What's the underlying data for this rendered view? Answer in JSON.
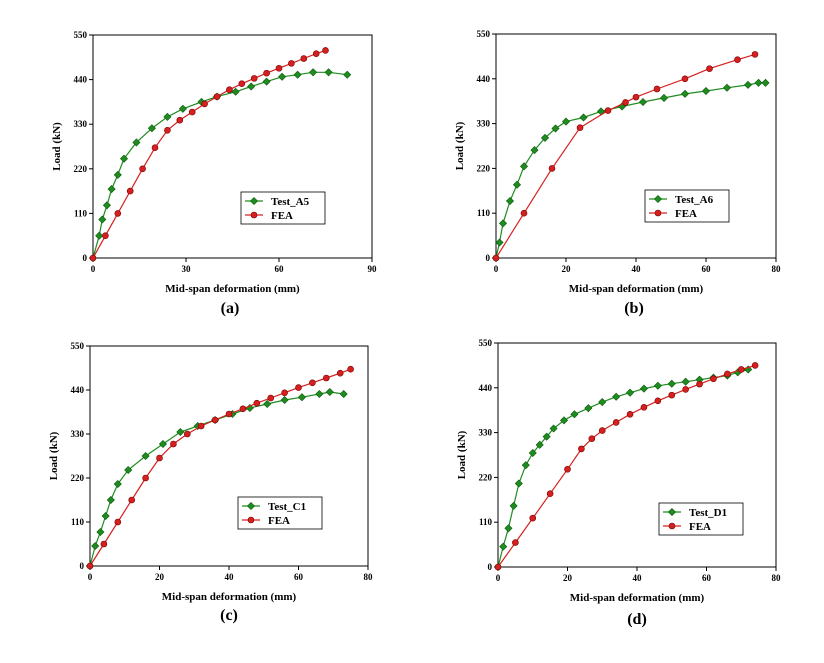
{
  "chart_data": [
    {
      "type": "line",
      "panel_label": "(a)",
      "xlabel": "Mid-span deformation (mm)",
      "ylabel": "Load (kN)",
      "xlim": [
        0,
        90
      ],
      "ylim": [
        0,
        550
      ],
      "xticks": [
        0,
        30,
        60,
        90
      ],
      "yticks": [
        0,
        110,
        220,
        330,
        440,
        550
      ],
      "legend_position": "lower-right",
      "grid": false,
      "series": [
        {
          "name": "Test_A5",
          "color": "#1f8c1f",
          "marker": "diamond",
          "x": [
            0,
            2,
            3,
            4.5,
            6,
            8,
            10,
            14,
            19,
            24,
            29,
            35,
            40,
            46,
            51,
            56,
            61,
            66,
            71,
            76,
            82
          ],
          "y": [
            0,
            55,
            95,
            130,
            170,
            205,
            245,
            285,
            320,
            348,
            368,
            385,
            398,
            410,
            423,
            435,
            447,
            452,
            458,
            458,
            452
          ]
        },
        {
          "name": "FEA",
          "color": "#d62020",
          "marker": "circle",
          "x": [
            0,
            4,
            8,
            12,
            16,
            20,
            24,
            28,
            32,
            36,
            40,
            44,
            48,
            52,
            56,
            60,
            64,
            68,
            72,
            75
          ],
          "y": [
            0,
            55,
            110,
            165,
            220,
            272,
            315,
            340,
            360,
            380,
            398,
            415,
            430,
            443,
            456,
            468,
            480,
            492,
            504,
            512
          ]
        }
      ]
    },
    {
      "type": "line",
      "panel_label": "(b)",
      "xlabel": "Mid-span deformation (mm)",
      "ylabel": "Load (kN)",
      "xlim": [
        0,
        80
      ],
      "ylim": [
        0,
        550
      ],
      "xticks": [
        0,
        20,
        40,
        60,
        80
      ],
      "yticks": [
        0,
        110,
        220,
        330,
        440,
        550
      ],
      "legend_position": "lower-right",
      "grid": false,
      "series": [
        {
          "name": "Test_A6",
          "color": "#1f8c1f",
          "marker": "diamond",
          "x": [
            0,
            1,
            2,
            4,
            6,
            8,
            11,
            14,
            17,
            20,
            25,
            30,
            36,
            42,
            48,
            54,
            60,
            66,
            72,
            75,
            77
          ],
          "y": [
            0,
            38,
            85,
            140,
            180,
            225,
            265,
            295,
            318,
            335,
            345,
            360,
            372,
            383,
            393,
            403,
            410,
            418,
            425,
            430,
            430
          ]
        },
        {
          "name": "FEA",
          "color": "#d62020",
          "marker": "circle",
          "x": [
            0,
            8,
            16,
            24,
            32,
            37,
            40,
            46,
            54,
            61,
            69,
            74
          ],
          "y": [
            0,
            110,
            220,
            320,
            362,
            382,
            395,
            415,
            440,
            465,
            487,
            500
          ]
        }
      ]
    },
    {
      "type": "line",
      "panel_label": "(c)",
      "xlabel": "Mid-span deformation (mm)",
      "ylabel": "Load (kN)",
      "xlim": [
        0,
        80
      ],
      "ylim": [
        0,
        550
      ],
      "xticks": [
        0,
        20,
        40,
        60,
        80
      ],
      "yticks": [
        0,
        110,
        220,
        330,
        440,
        550
      ],
      "legend_position": "lower-right",
      "grid": false,
      "series": [
        {
          "name": "Test_C1",
          "color": "#1f8c1f",
          "marker": "diamond",
          "x": [
            0,
            1.5,
            3,
            4.5,
            6,
            8,
            11,
            16,
            21,
            26,
            31,
            36,
            41,
            46,
            51,
            56,
            61,
            66,
            69,
            73
          ],
          "y": [
            0,
            50,
            85,
            125,
            165,
            205,
            240,
            275,
            305,
            335,
            350,
            365,
            380,
            395,
            405,
            415,
            422,
            430,
            435,
            430
          ]
        },
        {
          "name": "FEA",
          "color": "#d62020",
          "marker": "circle",
          "x": [
            0,
            4,
            8,
            12,
            16,
            20,
            24,
            28,
            32,
            36,
            40,
            44,
            48,
            52,
            56,
            60,
            64,
            68,
            72,
            75
          ],
          "y": [
            0,
            55,
            110,
            165,
            220,
            270,
            305,
            330,
            350,
            365,
            380,
            393,
            407,
            420,
            433,
            446,
            458,
            470,
            482,
            492
          ]
        }
      ]
    },
    {
      "type": "line",
      "panel_label": "(d)",
      "xlabel": "Mid-span deformation (mm)",
      "ylabel": "Load (kN)",
      "xlim": [
        0,
        80
      ],
      "ylim": [
        0,
        550
      ],
      "xticks": [
        0,
        20,
        40,
        60,
        80
      ],
      "yticks": [
        0,
        110,
        220,
        330,
        440,
        550
      ],
      "legend_position": "lower-right",
      "grid": false,
      "series": [
        {
          "name": "Test_D1",
          "color": "#1f8c1f",
          "marker": "diamond",
          "x": [
            0,
            1.5,
            3,
            4.5,
            6,
            8,
            10,
            12,
            14,
            16,
            19,
            22,
            26,
            30,
            34,
            38,
            42,
            46,
            50,
            54,
            58,
            62,
            66,
            69,
            72
          ],
          "y": [
            0,
            50,
            95,
            150,
            205,
            250,
            280,
            300,
            320,
            340,
            360,
            375,
            390,
            405,
            418,
            428,
            438,
            445,
            450,
            455,
            460,
            465,
            470,
            478,
            485
          ]
        },
        {
          "name": "FEA",
          "color": "#d62020",
          "marker": "circle",
          "x": [
            0,
            5,
            10,
            15,
            20,
            24,
            27,
            30,
            34,
            38,
            42,
            46,
            50,
            54,
            58,
            62,
            66,
            70,
            74
          ],
          "y": [
            0,
            60,
            120,
            180,
            240,
            290,
            315,
            335,
            355,
            375,
            392,
            408,
            422,
            436,
            449,
            462,
            474,
            485,
            495
          ]
        }
      ]
    }
  ]
}
